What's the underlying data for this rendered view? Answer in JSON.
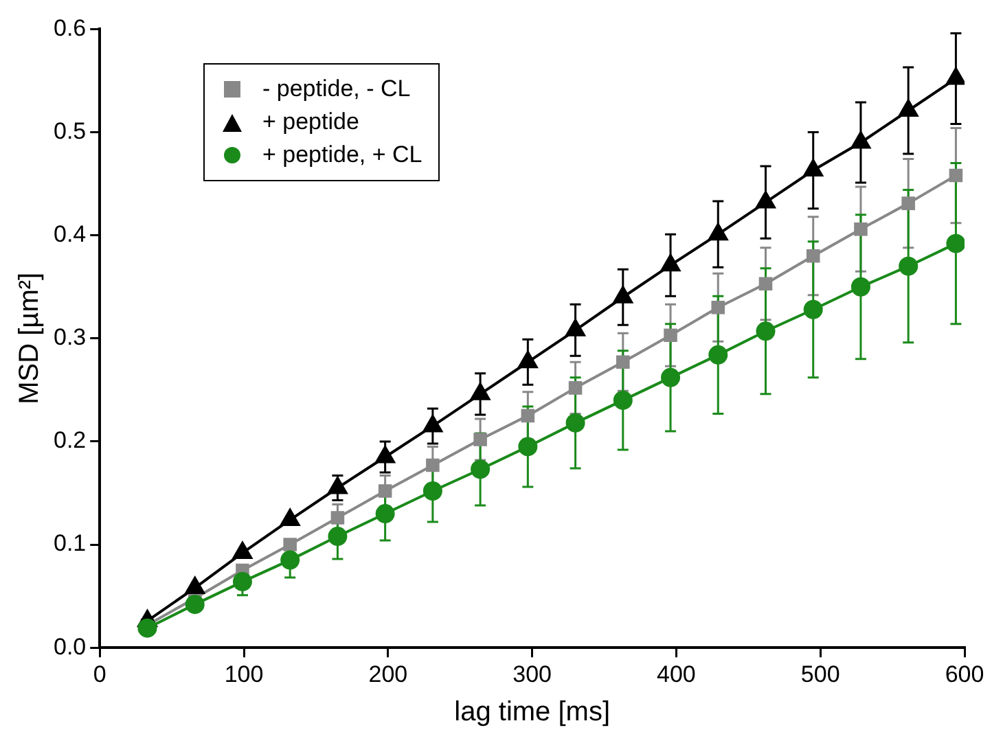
{
  "chart_data": {
    "type": "line",
    "xlabel": "lag time [ms]",
    "ylabel": "MSD [µm²]",
    "x": [
      33,
      66,
      99,
      132,
      165,
      198,
      231,
      264,
      297,
      330,
      363,
      396,
      429,
      462,
      495,
      528,
      561,
      594
    ],
    "xlim": [
      0,
      600
    ],
    "xticks": [
      0,
      100,
      200,
      300,
      400,
      500,
      600
    ],
    "ylim": [
      0,
      0.6
    ],
    "yticks": [
      {
        "value": 0,
        "label": "0.0"
      },
      {
        "value": 0.1,
        "label": "0.1"
      },
      {
        "value": 0.2,
        "label": "0.2"
      },
      {
        "value": 0.3,
        "label": "0.3"
      },
      {
        "value": 0.4,
        "label": "0.4"
      },
      {
        "value": 0.5,
        "label": "0.5"
      },
      {
        "value": 0.6,
        "label": "0.6"
      }
    ],
    "grid": false,
    "legend": "top left",
    "line_style": "solid",
    "series": [
      {
        "name": "- peptide, - CL",
        "color": "#888888",
        "marker": "square",
        "values": [
          0.022,
          0.048,
          0.075,
          0.1,
          0.126,
          0.152,
          0.177,
          0.202,
          0.225,
          0.252,
          0.277,
          0.303,
          0.33,
          0.353,
          0.38,
          0.406,
          0.431,
          0.458
        ],
        "errors": [
          null,
          null,
          null,
          null,
          0.013,
          0.015,
          0.018,
          0.02,
          0.023,
          0.025,
          0.028,
          0.03,
          0.033,
          0.035,
          0.038,
          0.041,
          0.043,
          0.046
        ]
      },
      {
        "name": "+ peptide",
        "color": "#000000",
        "marker": "triangle",
        "values": [
          0.026,
          0.058,
          0.092,
          0.124,
          0.155,
          0.185,
          0.215,
          0.246,
          0.277,
          0.308,
          0.34,
          0.371,
          0.401,
          0.432,
          0.463,
          0.49,
          0.521,
          0.552
        ],
        "errors": [
          null,
          null,
          null,
          null,
          0.012,
          0.015,
          0.017,
          0.02,
          0.022,
          0.025,
          0.027,
          0.03,
          0.032,
          0.035,
          0.037,
          0.039,
          0.042,
          0.044
        ]
      },
      {
        "name": "+ peptide, + CL",
        "color": "#1a8a1a",
        "marker": "circle",
        "values": [
          0.019,
          0.042,
          0.064,
          0.085,
          0.108,
          0.13,
          0.152,
          0.173,
          0.195,
          0.218,
          0.24,
          0.262,
          0.284,
          0.307,
          0.328,
          0.35,
          0.37,
          0.392
        ],
        "errors": [
          null,
          null,
          0.013,
          0.017,
          0.022,
          0.026,
          0.03,
          0.035,
          0.039,
          0.044,
          0.048,
          0.052,
          0.057,
          0.061,
          0.066,
          0.07,
          0.074,
          0.078
        ]
      }
    ]
  }
}
